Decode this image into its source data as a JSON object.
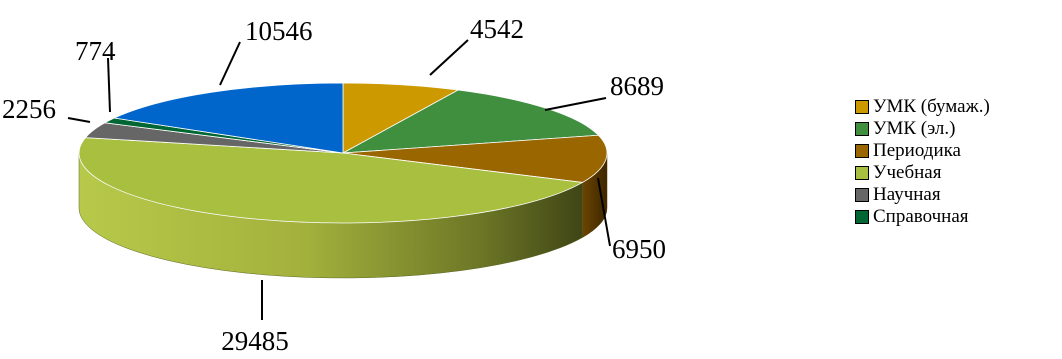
{
  "chart_data": {
    "type": "pie",
    "categories": [
      "УМК (бумаж.)",
      "УМК (эл.)",
      "Периодика",
      "Учебная",
      "Научная",
      "Справочная"
    ],
    "values": [
      4542,
      8689,
      6950,
      29485,
      2256,
      774
    ],
    "extra_labels": [
      {
        "label": "10546",
        "value": 10546
      }
    ],
    "data_labels": [
      "4542",
      "8689",
      "6950",
      "29485",
      "2256",
      "774"
    ],
    "extra_data_label": "10546",
    "colors": [
      "#cc9900",
      "#3f8f3f",
      "#996600",
      "#a9bf40",
      "#666666",
      "#006633"
    ],
    "extra_color": "#0066cc",
    "title": "",
    "legend_position": "right",
    "style": "3d"
  },
  "legend": {
    "items": [
      {
        "label": "УМК (бумаж.)",
        "color": "#cc9900"
      },
      {
        "label": "УМК (эл.)",
        "color": "#3f8f3f"
      },
      {
        "label": "Периодика",
        "color": "#996600"
      },
      {
        "label": "Учебная",
        "color": "#a9bf40"
      },
      {
        "label": "Научная",
        "color": "#666666"
      },
      {
        "label": "Справочная",
        "color": "#006633"
      }
    ]
  }
}
